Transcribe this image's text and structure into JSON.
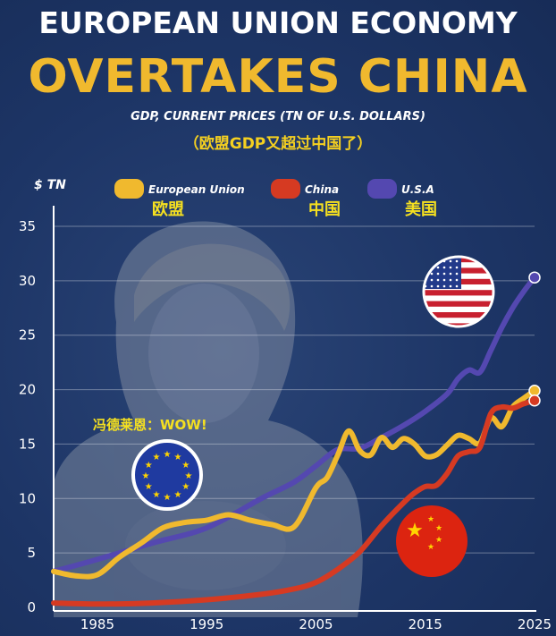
{
  "header": {
    "title_line1": "EUROPEAN UNION ECONOMY",
    "title_line2": "OVERTAKES CHINA",
    "subtitle": "GDP, CURRENT PRICES (TN OF U.S. DOLLARS)",
    "subtitle_cn": "（欧盟GDP又超过中国了）"
  },
  "annotation_text": "冯德莱恩：WOW!",
  "colors": {
    "eu": "#f0b92e",
    "china": "#d63a22",
    "usa": "#5448b0",
    "background": "#1d3566",
    "axis": "#ffffff"
  },
  "icons": [
    "person-photo",
    "eu-flag-icon",
    "us-flag-icon",
    "china-flag-icon"
  ],
  "chart_data": {
    "type": "line",
    "ylabel": "$ TN",
    "ylim": [
      0,
      35
    ],
    "xlim": [
      1981,
      2025
    ],
    "yticks": [
      0,
      5,
      10,
      15,
      20,
      25,
      30,
      35
    ],
    "xticks": [
      1985,
      1995,
      2005,
      2015,
      2025
    ],
    "grid": true,
    "legend_position": "top",
    "series": [
      {
        "name": "European Union",
        "name_cn": "欧盟",
        "color": "#f0b92e",
        "x": [
          1981,
          1983,
          1985,
          1987,
          1989,
          1991,
          1993,
          1995,
          1997,
          1999,
          2001,
          2003,
          2005,
          2006,
          2007,
          2008,
          2009,
          2010,
          2011,
          2012,
          2013,
          2014,
          2015,
          2016,
          2017,
          2018,
          2019,
          2020,
          2021,
          2022,
          2023,
          2024,
          2025
        ],
        "y": [
          3.3,
          2.9,
          3.0,
          4.6,
          5.9,
          7.3,
          7.8,
          8.0,
          8.5,
          8.0,
          7.6,
          7.4,
          11.0,
          11.9,
          14.0,
          16.2,
          14.4,
          14.0,
          15.6,
          14.7,
          15.5,
          15.0,
          13.9,
          14.0,
          14.9,
          15.8,
          15.5,
          15.1,
          17.4,
          16.6,
          18.4,
          19.2,
          19.9
        ]
      },
      {
        "name": "China",
        "name_cn": "中国",
        "color": "#d63a22",
        "x": [
          1981,
          1985,
          1990,
          1995,
          2000,
          2003,
          2005,
          2007,
          2009,
          2011,
          2013,
          2014,
          2015,
          2016,
          2017,
          2018,
          2019,
          2020,
          2021,
          2022,
          2023,
          2024,
          2025
        ],
        "y": [
          0.4,
          0.3,
          0.4,
          0.7,
          1.2,
          1.7,
          2.3,
          3.5,
          5.1,
          7.5,
          9.6,
          10.5,
          11.1,
          11.2,
          12.3,
          13.9,
          14.3,
          14.7,
          17.8,
          18.4,
          18.3,
          18.7,
          19.0
        ]
      },
      {
        "name": "U.S.A",
        "name_cn": "美国",
        "color": "#5448b0",
        "x": [
          1981,
          1985,
          1990,
          1995,
          2000,
          2003,
          2005,
          2007,
          2009,
          2011,
          2013,
          2015,
          2017,
          2018,
          2019,
          2020,
          2021,
          2022,
          2023,
          2024,
          2025
        ],
        "y": [
          3.3,
          4.4,
          5.9,
          7.3,
          10.0,
          11.5,
          13.0,
          14.5,
          14.6,
          15.6,
          16.7,
          18.0,
          19.6,
          21.0,
          21.8,
          21.6,
          23.6,
          25.7,
          27.5,
          29.0,
          30.3
        ]
      }
    ]
  }
}
